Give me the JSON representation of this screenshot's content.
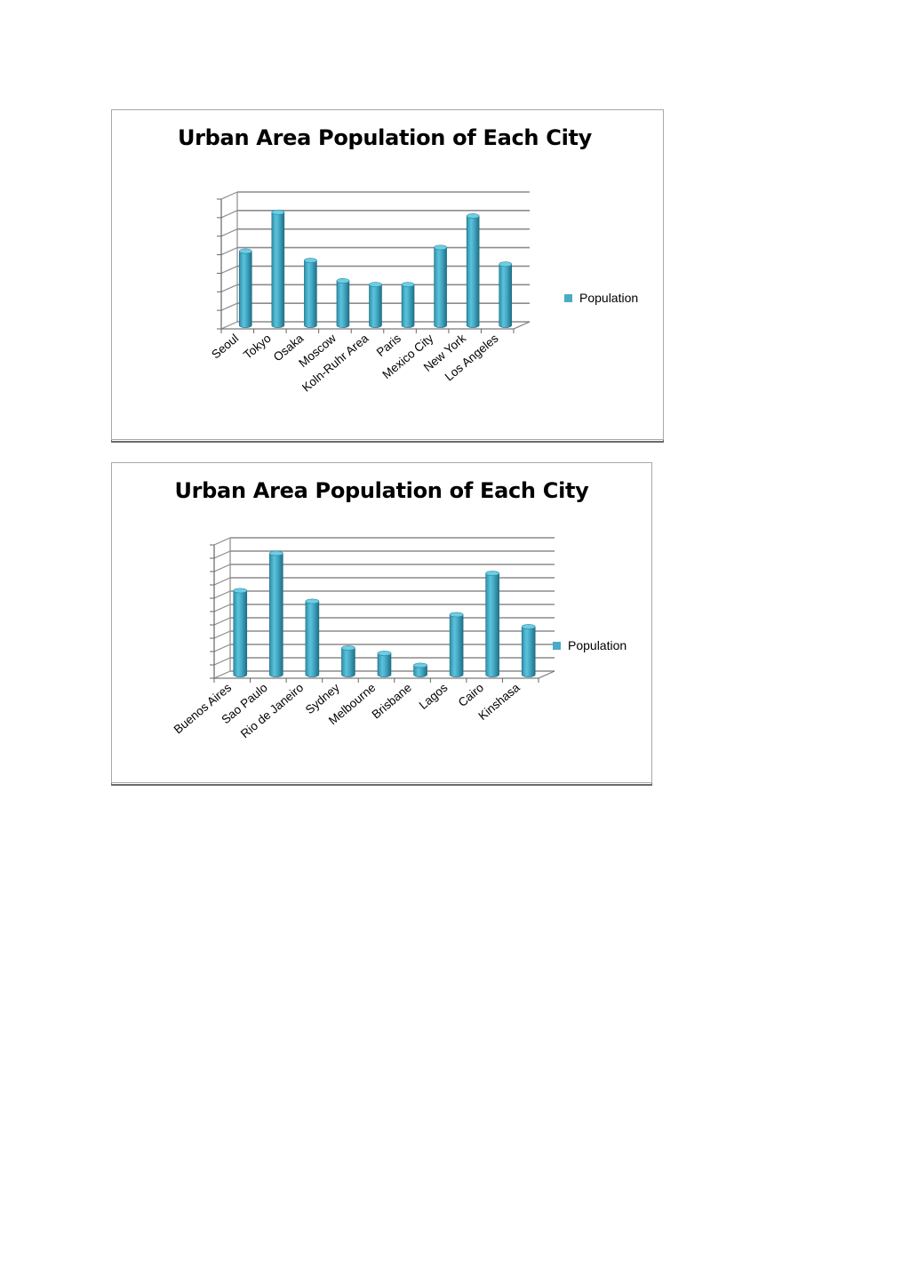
{
  "chart_data": [
    {
      "type": "bar",
      "title": "Urban Area Population of Each City",
      "categories": [
        "Seoul",
        "Tokyo",
        "Osaka",
        "Moscow",
        "Koln-Ruhr Area",
        "Paris",
        "Mexico City",
        "New York",
        "Los Angeles"
      ],
      "series": [
        {
          "name": "Population",
          "values": [
            4.0,
            6.1,
            3.5,
            2.4,
            2.2,
            2.2,
            4.2,
            5.9,
            3.3
          ]
        }
      ],
      "ylim": [
        0,
        7
      ],
      "grid": true,
      "legend": "right",
      "color": "#4aabc5"
    },
    {
      "type": "bar",
      "title": "Urban Area Population of Each City",
      "categories": [
        "Buenos Aires",
        "Sao Paulo",
        "Rio de Janeiro",
        "Sydney",
        "Melbourne",
        "Brisbane",
        "Lagos",
        "Cairo",
        "Kinshasa"
      ],
      "series": [
        {
          "name": "Population",
          "values": [
            6.3,
            9.1,
            5.5,
            2.0,
            1.6,
            0.7,
            4.5,
            7.6,
            3.6
          ]
        }
      ],
      "ylim": [
        0,
        10
      ],
      "grid": true,
      "legend": "right",
      "color": "#4aabc5"
    }
  ]
}
